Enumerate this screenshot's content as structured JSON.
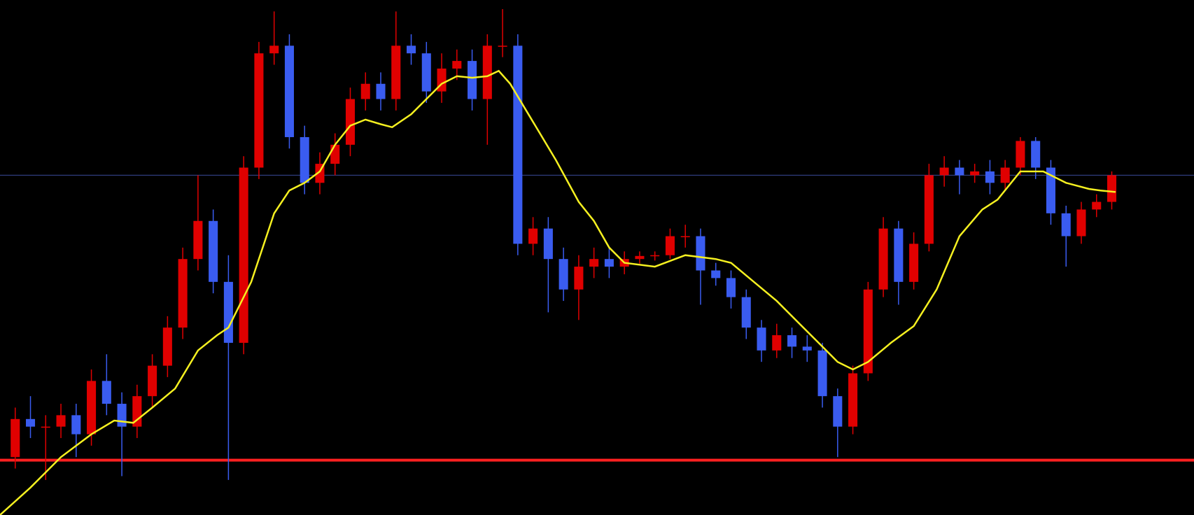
{
  "chart_data": {
    "type": "candlestick",
    "up_color": "#e00000",
    "down_color": "#3a5cf0",
    "xlim": [
      0,
      78.4
    ],
    "ylim": [
      0,
      676
    ],
    "x": [
      1,
      2,
      3,
      4,
      5,
      6,
      7,
      8,
      9,
      10,
      11,
      12,
      13,
      14,
      15,
      16,
      17,
      18,
      19,
      20,
      21,
      22,
      23,
      24,
      25,
      26,
      27,
      28,
      29,
      30,
      31,
      32,
      33,
      34,
      35,
      36,
      37,
      38,
      39,
      40,
      41,
      42,
      43,
      44,
      45,
      46,
      47,
      48,
      49,
      50,
      51,
      52,
      53,
      54,
      55,
      56,
      57,
      58,
      59,
      60,
      61,
      62,
      63,
      64,
      65,
      66,
      67,
      68,
      69,
      70,
      71,
      72,
      73
    ],
    "open": [
      76,
      126,
      116,
      116,
      131,
      106,
      176,
      146,
      116,
      156,
      196,
      246,
      336,
      386,
      306,
      226,
      456,
      606,
      616,
      496,
      436,
      461,
      486,
      546,
      566,
      546,
      616,
      606,
      556,
      586,
      596,
      546,
      616,
      616,
      356,
      376,
      336,
      296,
      326,
      336,
      326,
      336,
      340,
      341,
      366,
      366,
      321,
      311,
      286,
      246,
      216,
      236,
      221,
      216,
      156,
      116,
      186,
      296,
      376,
      306,
      356,
      446,
      456,
      446,
      451,
      436,
      456,
      491,
      456,
      396,
      366,
      401,
      411
    ],
    "high": [
      141,
      156,
      131,
      146,
      146,
      191,
      211,
      161,
      171,
      211,
      261,
      351,
      446,
      401,
      341,
      471,
      621,
      661,
      631,
      511,
      476,
      501,
      561,
      581,
      581,
      661,
      631,
      621,
      606,
      611,
      611,
      631,
      664,
      631,
      391,
      391,
      351,
      341,
      351,
      351,
      346,
      346,
      346,
      376,
      381,
      376,
      331,
      321,
      296,
      256,
      251,
      246,
      236,
      226,
      166,
      196,
      306,
      391,
      386,
      371,
      461,
      471,
      466,
      461,
      466,
      466,
      496,
      496,
      466,
      406,
      411,
      421,
      451
    ],
    "low": [
      61,
      101,
      46,
      101,
      76,
      91,
      131,
      51,
      101,
      141,
      181,
      231,
      321,
      291,
      46,
      211,
      441,
      591,
      481,
      421,
      421,
      446,
      471,
      531,
      531,
      531,
      591,
      541,
      541,
      571,
      531,
      486,
      601,
      341,
      341,
      266,
      281,
      256,
      311,
      311,
      316,
      330,
      334,
      336,
      351,
      276,
      301,
      271,
      231,
      201,
      206,
      206,
      201,
      141,
      76,
      106,
      176,
      286,
      276,
      296,
      346,
      431,
      421,
      436,
      421,
      426,
      446,
      441,
      381,
      326,
      356,
      391,
      401
    ],
    "close": [
      126,
      116,
      116,
      131,
      106,
      176,
      146,
      116,
      156,
      196,
      246,
      336,
      386,
      306,
      226,
      456,
      606,
      616,
      496,
      436,
      461,
      486,
      546,
      566,
      546,
      616,
      606,
      556,
      586,
      596,
      546,
      616,
      616,
      356,
      376,
      336,
      296,
      326,
      336,
      326,
      336,
      340,
      341,
      366,
      366,
      321,
      311,
      286,
      246,
      216,
      236,
      221,
      216,
      156,
      116,
      186,
      296,
      376,
      306,
      356,
      446,
      456,
      446,
      451,
      436,
      456,
      491,
      456,
      396,
      366,
      401,
      411,
      446
    ],
    "ma": {
      "color": "#f5f020",
      "x": [
        0,
        2,
        4,
        6,
        7.5,
        8.75,
        10,
        11.5,
        13,
        14.25,
        15,
        16.5,
        18,
        19,
        20,
        21,
        22,
        23,
        24,
        25,
        25.75,
        27,
        28,
        29,
        30,
        31,
        32,
        32.75,
        33.5,
        35,
        36.5,
        38,
        39,
        40,
        41,
        43,
        45,
        47,
        48,
        49.5,
        51,
        52.5,
        54,
        55,
        56,
        57,
        58.5,
        60,
        61.5,
        63,
        64.5,
        65.5,
        67,
        68.5,
        70,
        71.5,
        72.25,
        73.25
      ],
      "values": [
        0,
        36,
        76,
        106,
        124,
        121,
        141,
        166,
        216,
        236,
        246,
        306,
        396,
        426,
        436,
        451,
        486,
        511,
        519,
        513,
        509,
        526,
        546,
        566,
        576,
        574,
        576,
        583,
        566,
        516,
        466,
        411,
        386,
        351,
        331,
        326,
        341,
        336,
        331,
        306,
        281,
        251,
        221,
        201,
        191,
        201,
        226,
        248,
        296,
        366,
        401,
        414,
        451,
        451,
        436,
        428,
        426,
        424
      ]
    },
    "hlines": [
      {
        "value": 446,
        "color": "#3a4a9a"
      },
      {
        "value": 72,
        "color": "#ff2020"
      }
    ]
  }
}
